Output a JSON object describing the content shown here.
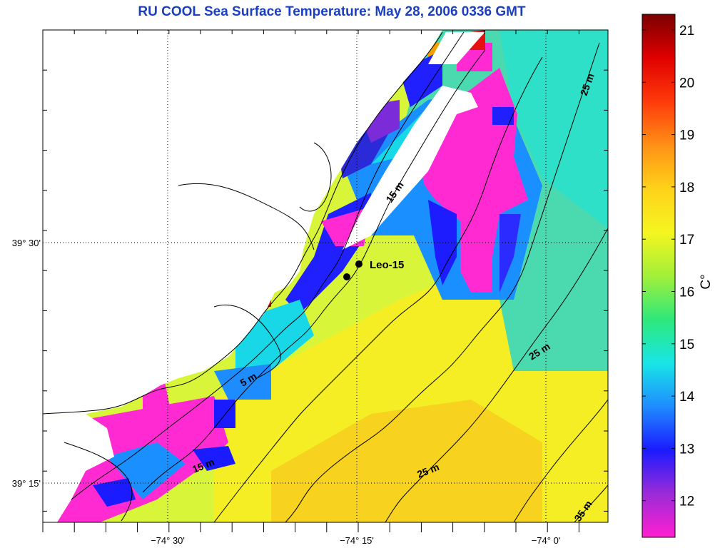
{
  "title": "RU COOL  Sea Surface Temperature:  May 28, 2006 0336 GMT",
  "colorbar": {
    "unit": "C°",
    "ticks": [
      "21",
      "20",
      "19",
      "18",
      "17",
      "16",
      "15",
      "14",
      "13",
      "12"
    ],
    "range": [
      11.3,
      21.3
    ],
    "stops": [
      "#ff1fd0",
      "#9b2bd8",
      "#1b1bff",
      "#1f8cff",
      "#18e6e6",
      "#2ee87a",
      "#a2f03a",
      "#f5f51f",
      "#ffd21a",
      "#ff9016",
      "#ff3a0a",
      "#e00000",
      "#7a0000"
    ]
  },
  "axes": {
    "x_labels": [
      "−74° 30'",
      "−74° 15'",
      "−74° 0'"
    ],
    "y_labels": [
      "39° 30'",
      "39° 15'"
    ]
  },
  "isobaths": [
    "25 m",
    "15 m",
    "25 m",
    "5 m",
    "15 m",
    "25 m",
    "35 m"
  ],
  "station": {
    "label": "Leo-15"
  },
  "colors": {
    "title": "#1a3fbf"
  }
}
